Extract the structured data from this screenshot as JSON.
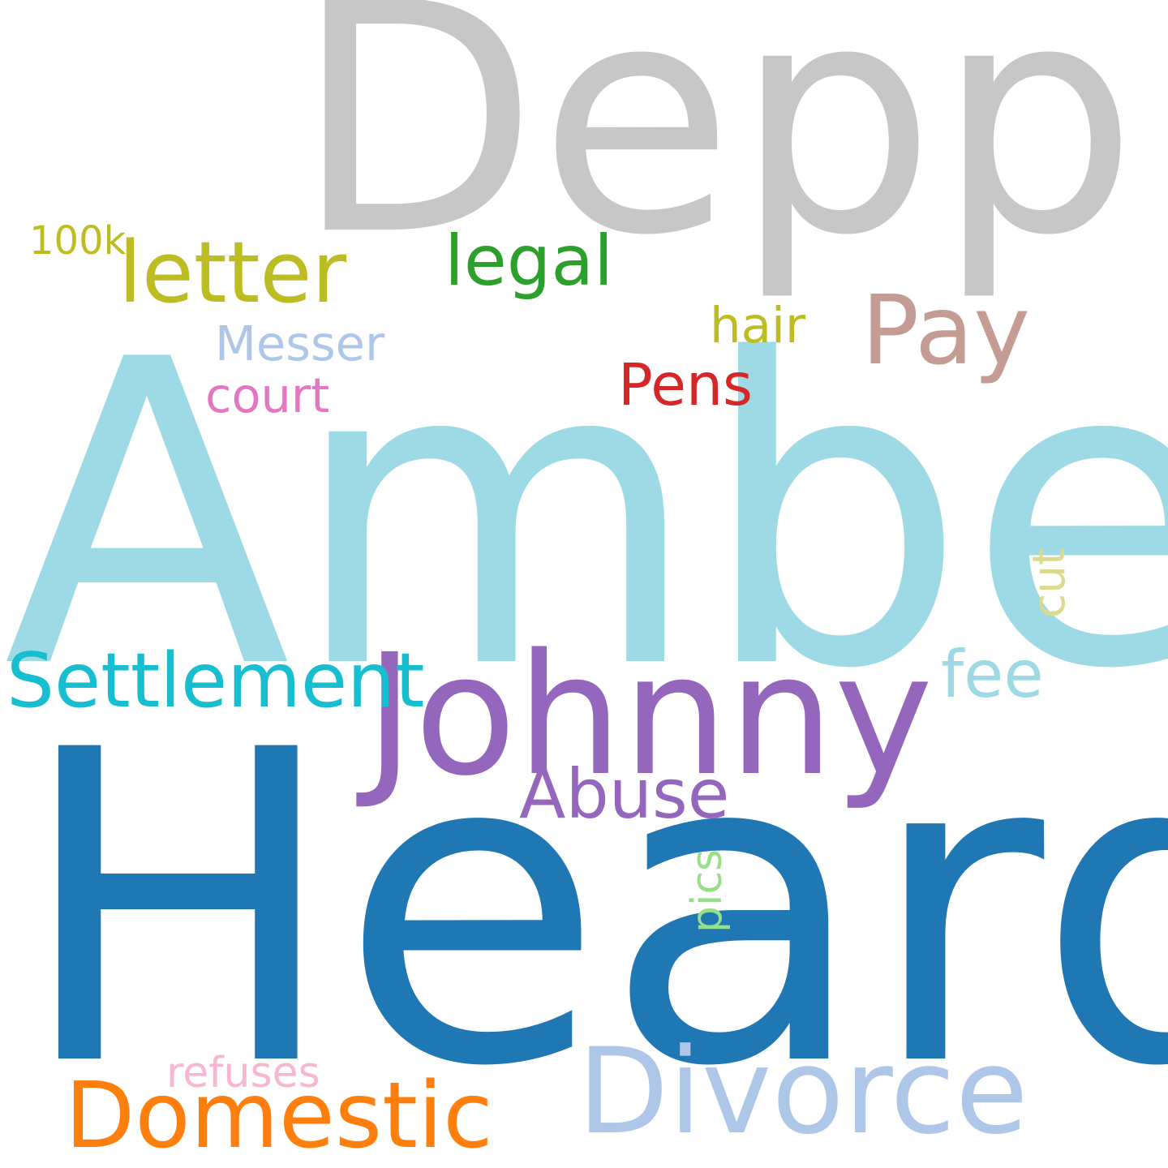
{
  "words": {
    "depp": {
      "text": "Depp",
      "color": "#c7c7c7"
    },
    "amber": {
      "text": "Amber",
      "color": "#9edae5"
    },
    "heard": {
      "text": "Heard",
      "color": "#1f77b4"
    },
    "johnny": {
      "text": "Johnny",
      "color": "#9467bd"
    },
    "divorce": {
      "text": "Divorce",
      "color": "#aec7e8"
    },
    "domestic": {
      "text": "Domestic",
      "color": "#ff7f0e"
    },
    "settlement": {
      "text": "Settlement",
      "color": "#17becf"
    },
    "letter": {
      "text": "letter",
      "color": "#bcbd22"
    },
    "legal": {
      "text": "legal",
      "color": "#2ca02c"
    },
    "pay": {
      "text": "Pay",
      "color": "#c49c94"
    },
    "abuse": {
      "text": "Abuse",
      "color": "#9467bd"
    },
    "pens": {
      "text": "Pens",
      "color": "#d62728"
    },
    "fee": {
      "text": "fee",
      "color": "#9edae5"
    },
    "messer": {
      "text": "Messer",
      "color": "#aec7e8"
    },
    "court": {
      "text": "court",
      "color": "#e377c2"
    },
    "hair": {
      "text": "hair",
      "color": "#bcbd22"
    },
    "refuses": {
      "text": "refuses",
      "color": "#f7b6d2"
    },
    "k100": {
      "text": "100k",
      "color": "#bcbd22"
    },
    "pics": {
      "text": "pics",
      "color": "#98df8a"
    },
    "cut": {
      "text": "cut",
      "color": "#dbdb8d"
    }
  }
}
